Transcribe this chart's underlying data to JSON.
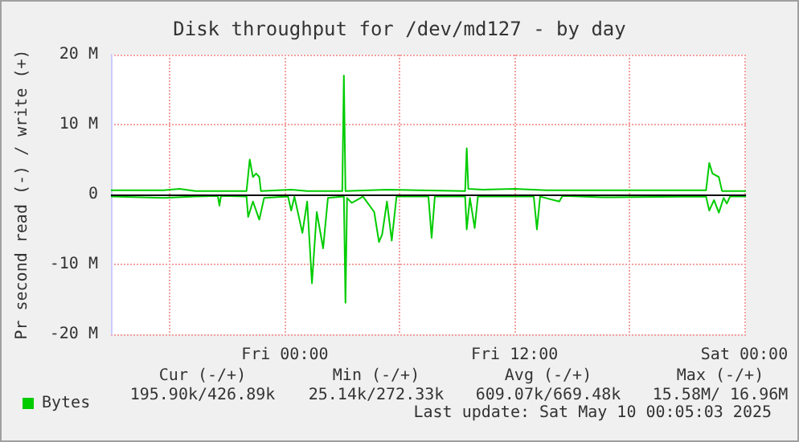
{
  "chart_data": {
    "type": "line",
    "title": "Disk throughput for /dev/md127 - by day",
    "ylabel": "Pr second read (-) / write (+)",
    "xlim": [
      "2025-05-08T14:55",
      "2025-05-10T00:05"
    ],
    "xticks": [
      {
        "value": "2025-05-08T18:00",
        "label": null
      },
      {
        "value": "2025-05-09T00:00",
        "label": "Fri 00:00"
      },
      {
        "value": "2025-05-09T06:00",
        "label": null
      },
      {
        "value": "2025-05-09T12:00",
        "label": "Fri 12:00"
      },
      {
        "value": "2025-05-09T18:00",
        "label": null
      },
      {
        "value": "2025-05-10T00:00",
        "label": "Sat 00:00"
      }
    ],
    "ylim": [
      -20,
      20
    ],
    "yticks": [
      {
        "value": -20,
        "label": "-20 M"
      },
      {
        "value": -10,
        "label": "-10 M"
      },
      0,
      {
        "value": 10,
        "label": "10 M"
      },
      {
        "value": 20,
        "label": "20 M"
      }
    ],
    "grid": true,
    "legend": "bottom left",
    "marker": "none",
    "line_style": "solid",
    "series": [
      {
        "name": "Bytes",
        "color": "#00cc00",
        "x": [
          "2025-05-08T14:55",
          "2025-05-08T17:40",
          "2025-05-08T18:30",
          "2025-05-08T19:20",
          "2025-05-08T21:50",
          "2025-05-08T22:00",
          "2025-05-08T22:10",
          "2025-05-08T22:20",
          "2025-05-08T22:30",
          "2025-05-08T22:40",
          "2025-05-08T22:45",
          "2025-05-09T00:20",
          "2025-05-09T01:10",
          "2025-05-09T03:00",
          "2025-05-09T03:05",
          "2025-05-09T03:10",
          "2025-05-09T05:20",
          "2025-05-09T07:00",
          "2025-05-09T09:25",
          "2025-05-09T09:30",
          "2025-05-09T09:35",
          "2025-05-09T10:20",
          "2025-05-09T12:00",
          "2025-05-09T13:40",
          "2025-05-09T17:00",
          "2025-05-09T22:00",
          "2025-05-09T22:10",
          "2025-05-09T22:20",
          "2025-05-09T22:40",
          "2025-05-09T22:50",
          "2025-05-10T00:05"
        ],
        "values": [
          0.6,
          0.6,
          0.8,
          0.5,
          0.5,
          0.5,
          5,
          2.5,
          3,
          2.5,
          0.5,
          0.7,
          0.5,
          0.5,
          17,
          0.5,
          0.7,
          0.6,
          0.5,
          6.6,
          0.8,
          0.7,
          0.8,
          0.6,
          0.6,
          0.6,
          4.5,
          3,
          2.5,
          0.5,
          0.5
        ]
      },
      {
        "color": "#00cc00",
        "x": [
          "2025-05-08T14:55",
          "2025-05-08T17:40",
          "2025-05-08T19:20",
          "2025-05-08T20:30",
          "2025-05-08T20:35",
          "2025-05-08T20:40",
          "2025-05-08T22:00",
          "2025-05-08T22:05",
          "2025-05-08T22:20",
          "2025-05-08T22:40",
          "2025-05-08T22:55",
          "2025-05-09T00:10",
          "2025-05-09T00:20",
          "2025-05-09T00:30",
          "2025-05-09T00:55",
          "2025-05-09T01:10",
          "2025-05-09T01:25",
          "2025-05-09T01:40",
          "2025-05-09T02:00",
          "2025-05-09T02:15",
          "2025-05-09T03:05",
          "2025-05-09T03:10",
          "2025-05-09T03:15",
          "2025-05-09T03:30",
          "2025-05-09T04:05",
          "2025-05-09T04:40",
          "2025-05-09T04:55",
          "2025-05-09T05:05",
          "2025-05-09T05:20",
          "2025-05-09T05:35",
          "2025-05-09T05:50",
          "2025-05-09T07:30",
          "2025-05-09T07:40",
          "2025-05-09T07:50",
          "2025-05-09T09:25",
          "2025-05-09T09:30",
          "2025-05-09T09:40",
          "2025-05-09T09:55",
          "2025-05-09T10:05",
          "2025-05-09T13:00",
          "2025-05-09T13:10",
          "2025-05-09T13:20",
          "2025-05-09T14:20",
          "2025-05-09T14:30",
          "2025-05-09T16:35",
          "2025-05-09T22:00",
          "2025-05-09T22:10",
          "2025-05-09T22:25",
          "2025-05-09T22:40",
          "2025-05-09T22:55",
          "2025-05-09T23:05",
          "2025-05-09T23:15",
          "2025-05-10T00:05"
        ],
        "values": [
          -0.3,
          -0.5,
          -0.3,
          -0.2,
          -1.6,
          -0.2,
          -0.3,
          -3.2,
          -1,
          -3.6,
          -0.5,
          -0.3,
          -2.3,
          -0.3,
          -5.5,
          -1,
          -12.7,
          -2.5,
          -7.7,
          -0.5,
          -0.3,
          -15.5,
          -0.5,
          -1.2,
          -0.3,
          -2.5,
          -6.8,
          -5.7,
          -1,
          -6.6,
          -0.3,
          -0.3,
          -6.2,
          -0.3,
          -0.3,
          -5,
          -0.5,
          -4.8,
          -0.3,
          -0.3,
          -5,
          -0.3,
          -1,
          -0.2,
          -0.4,
          -0.3,
          -2.3,
          -0.8,
          -2.6,
          -0.5,
          -1.3,
          -0.3,
          -0.3
        ]
      }
    ],
    "ref_lines": [
      {
        "axis": "y",
        "value": 0,
        "color": "#000000"
      }
    ],
    "annotations": [
      "Cur (-/+)",
      "Min (-/+)",
      "Avg (-/+)",
      "Max (-/+)",
      "195.90k/426.89k",
      "25.14k/272.33k",
      "609.07k/669.48k",
      "15.58M/ 16.96M",
      "Last update: Sat May 10 00:05:03 2025"
    ]
  }
}
